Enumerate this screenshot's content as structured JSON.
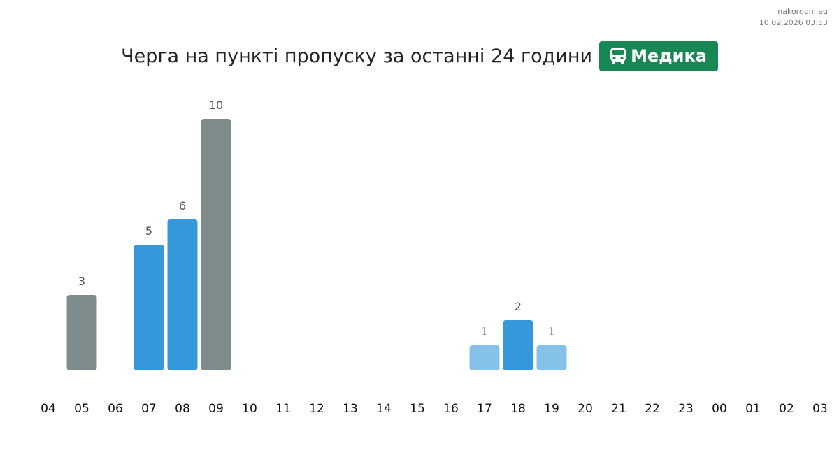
{
  "site": {
    "name": "nakordoni.eu",
    "timestamp": "10.02.2026 03:53"
  },
  "header": {
    "title": "Черга на пункті пропуску за останні 24 години",
    "badge": {
      "label": "Медика",
      "icon": "bus-icon",
      "color": "#198754"
    }
  },
  "colors": {
    "gray": "#7f8c8d",
    "blue": "#3498db",
    "light_blue": "#85c1e9",
    "axis_text": "#111111",
    "value_text": "#555555"
  },
  "chart_data": {
    "type": "bar",
    "title": "",
    "xlabel": "",
    "ylabel": "",
    "grid": false,
    "categories": [
      "04",
      "05",
      "06",
      "07",
      "08",
      "09",
      "10",
      "11",
      "12",
      "13",
      "14",
      "15",
      "16",
      "17",
      "18",
      "19",
      "20",
      "21",
      "22",
      "23",
      "00",
      "01",
      "02",
      "03"
    ],
    "values": [
      0,
      3,
      0,
      5,
      6,
      10,
      0,
      0,
      0,
      0,
      0,
      0,
      0,
      1,
      2,
      1,
      0,
      0,
      0,
      0,
      0,
      0,
      0,
      0
    ],
    "bar_colors": [
      "",
      "gray",
      "",
      "blue",
      "blue",
      "gray",
      "",
      "",
      "",
      "",
      "",
      "",
      "",
      "light_blue",
      "blue",
      "light_blue",
      "",
      "",
      "",
      "",
      "",
      "",
      "",
      ""
    ],
    "ylim": [
      0,
      10
    ]
  }
}
